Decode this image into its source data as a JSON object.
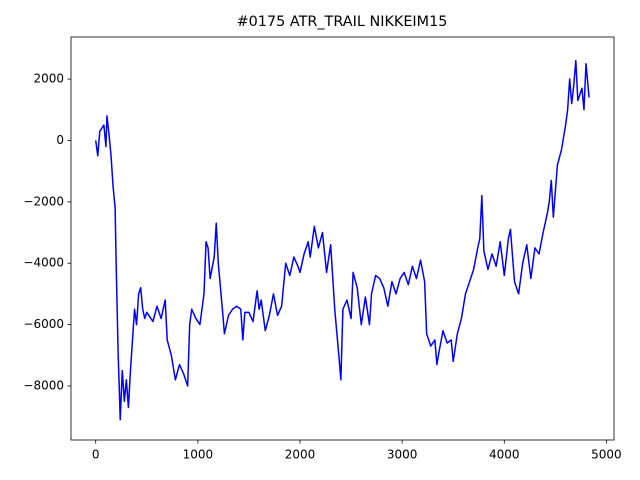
{
  "chart_data": {
    "type": "line",
    "title": "#0175 ATR_TRAIL NIKKEIM15",
    "x": [
      0,
      20,
      40,
      80,
      100,
      110,
      130,
      150,
      170,
      190,
      200,
      210,
      220,
      230,
      240,
      260,
      280,
      300,
      320,
      340,
      360,
      380,
      400,
      420,
      440,
      460,
      480,
      500,
      560,
      600,
      640,
      680,
      700,
      740,
      780,
      820,
      860,
      900,
      920,
      940,
      980,
      1020,
      1060,
      1080,
      1100,
      1120,
      1160,
      1180,
      1200,
      1240,
      1260,
      1300,
      1340,
      1380,
      1420,
      1440,
      1460,
      1500,
      1540,
      1580,
      1600,
      1620,
      1660,
      1700,
      1740,
      1780,
      1820,
      1860,
      1900,
      1940,
      1980,
      2000,
      2040,
      2080,
      2100,
      2140,
      2180,
      2220,
      2260,
      2300,
      2340,
      2380,
      2400,
      2420,
      2460,
      2500,
      2520,
      2560,
      2600,
      2640,
      2680,
      2700,
      2740,
      2780,
      2820,
      2860,
      2900,
      2940,
      2980,
      3020,
      3060,
      3100,
      3140,
      3180,
      3220,
      3240,
      3280,
      3320,
      3340,
      3360,
      3400,
      3440,
      3480,
      3500,
      3540,
      3580,
      3620,
      3660,
      3700,
      3740,
      3760,
      3780,
      3800,
      3840,
      3880,
      3920,
      3960,
      4000,
      4040,
      4060,
      4100,
      4140,
      4180,
      4220,
      4260,
      4300,
      4340,
      4380,
      4420,
      4440,
      4460,
      4480,
      4520,
      4560,
      4600,
      4620,
      4640,
      4660,
      4680,
      4700,
      4720,
      4760,
      4780,
      4800,
      4830
    ],
    "series": [
      {
        "color": "#0000ff",
        "values": [
          0,
          -500,
          300,
          500,
          -200,
          800,
          200,
          -500,
          -1500,
          -2200,
          -4000,
          -5500,
          -7000,
          -8000,
          -9100,
          -7500,
          -8500,
          -7800,
          -8700,
          -7500,
          -6500,
          -5500,
          -6000,
          -5000,
          -4800,
          -5500,
          -5800,
          -5600,
          -5900,
          -5400,
          -5800,
          -5200,
          -6500,
          -7000,
          -7800,
          -7300,
          -7600,
          -8000,
          -6000,
          -5500,
          -5800,
          -6000,
          -5000,
          -3300,
          -3500,
          -4500,
          -3800,
          -2700,
          -4000,
          -5500,
          -6300,
          -5700,
          -5500,
          -5400,
          -5500,
          -6500,
          -5600,
          -5600,
          -5900,
          -4900,
          -5500,
          -5200,
          -6200,
          -5700,
          -5000,
          -5700,
          -5400,
          -4000,
          -4400,
          -3800,
          -4100,
          -4300,
          -3700,
          -3300,
          -3800,
          -2800,
          -3500,
          -3000,
          -4300,
          -3400,
          -5500,
          -7000,
          -7800,
          -5500,
          -5200,
          -5800,
          -4300,
          -4800,
          -6000,
          -5100,
          -6000,
          -5000,
          -4400,
          -4500,
          -4800,
          -5400,
          -4600,
          -5000,
          -4500,
          -4300,
          -4700,
          -4100,
          -4500,
          -3900,
          -4600,
          -6300,
          -6700,
          -6500,
          -7300,
          -6900,
          -6200,
          -6600,
          -6500,
          -7200,
          -6300,
          -5800,
          -5000,
          -4600,
          -4200,
          -3500,
          -3200,
          -1800,
          -3600,
          -4200,
          -3700,
          -4100,
          -3300,
          -4400,
          -3200,
          -2900,
          -4600,
          -5000,
          -4000,
          -3400,
          -4500,
          -3500,
          -3700,
          -3000,
          -2400,
          -2000,
          -1300,
          -2500,
          -800,
          -300,
          500,
          1000,
          2000,
          1200,
          1800,
          2600,
          1300,
          1700,
          1000,
          2500,
          1400
        ]
      }
    ],
    "xlim": [
      -242,
      5074
    ],
    "ylim": [
      -9760,
      3370
    ],
    "xticks": [
      0,
      1000,
      2000,
      3000,
      4000,
      5000
    ],
    "yticks": [
      {
        "value": -8000,
        "label": "−8000"
      },
      {
        "value": -6000,
        "label": "−6000"
      },
      {
        "value": -4000,
        "label": "−4000"
      },
      {
        "value": -2000,
        "label": "−2000"
      },
      0,
      2000
    ]
  }
}
